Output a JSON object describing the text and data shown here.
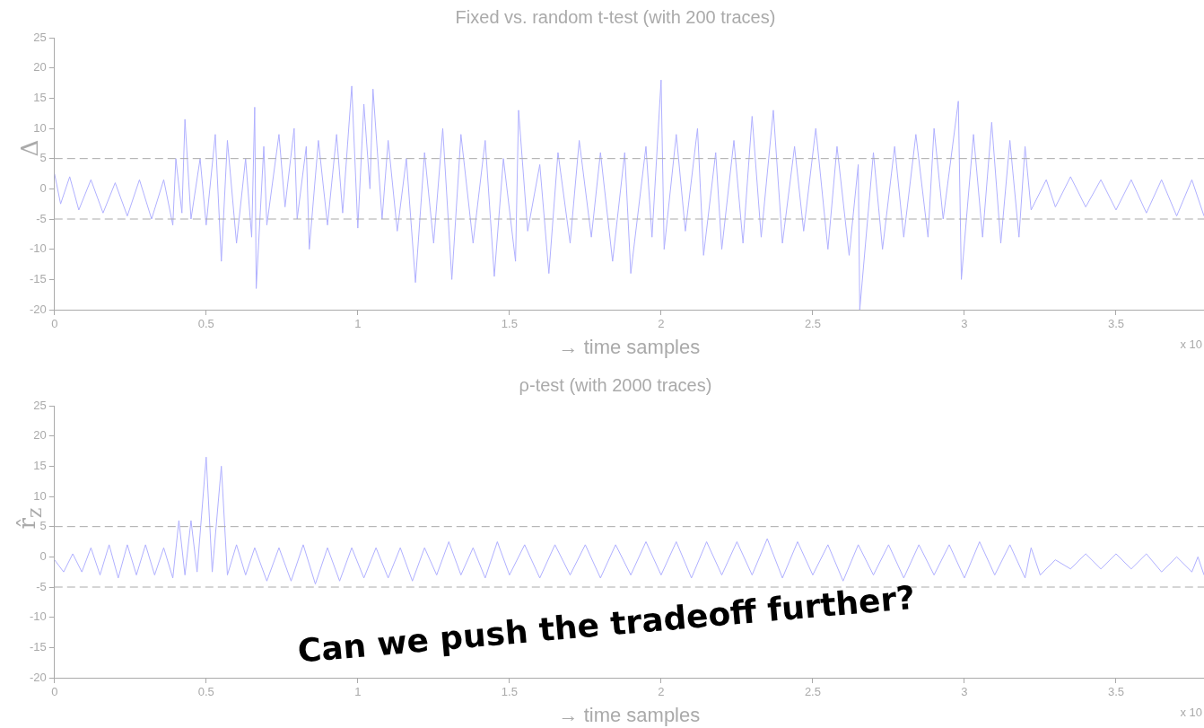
{
  "chart_data": [
    {
      "type": "line",
      "title": "Fixed vs. random t-test (with 200 traces)",
      "xlabel": "→ time samples",
      "ylabel": "Δ",
      "xlim": [
        0,
        3.79
      ],
      "xticks": [
        0,
        0.5,
        1,
        1.5,
        2,
        2.5,
        3,
        3.5
      ],
      "ylim": [
        -20,
        25
      ],
      "yticks": [
        -20,
        -15,
        -10,
        -5,
        0,
        5,
        10,
        15,
        20,
        25
      ],
      "grid": false,
      "legend": false,
      "marker": "none",
      "line_style": "solid",
      "ref_lines": [
        {
          "axis": "y",
          "value": 5,
          "color": "#aaaaaa",
          "line_style": "dashed"
        },
        {
          "axis": "y",
          "value": -5,
          "color": "#aaaaaa",
          "line_style": "dashed"
        }
      ],
      "annotations": [
        "x 10"
      ],
      "series": [
        {
          "color": "#b0b0ff",
          "x": [
            0,
            0.02,
            0.05,
            0.08,
            0.12,
            0.16,
            0.2,
            0.24,
            0.28,
            0.32,
            0.36,
            0.39,
            0.4,
            0.42,
            0.43,
            0.45,
            0.48,
            0.5,
            0.53,
            0.55,
            0.57,
            0.6,
            0.63,
            0.65,
            0.66,
            0.665,
            0.69,
            0.7,
            0.74,
            0.76,
            0.79,
            0.8,
            0.83,
            0.84,
            0.87,
            0.9,
            0.93,
            0.95,
            0.98,
            1.0,
            1.02,
            1.04,
            1.05,
            1.08,
            1.1,
            1.13,
            1.16,
            1.19,
            1.22,
            1.25,
            1.28,
            1.31,
            1.34,
            1.38,
            1.42,
            1.45,
            1.48,
            1.52,
            1.53,
            1.56,
            1.6,
            1.63,
            1.66,
            1.7,
            1.73,
            1.77,
            1.8,
            1.84,
            1.88,
            1.9,
            1.95,
            1.97,
            2.0,
            2.01,
            2.05,
            2.08,
            2.12,
            2.14,
            2.18,
            2.2,
            2.24,
            2.27,
            2.3,
            2.33,
            2.37,
            2.4,
            2.44,
            2.47,
            2.51,
            2.55,
            2.58,
            2.62,
            2.65,
            2.655,
            2.7,
            2.73,
            2.77,
            2.8,
            2.84,
            2.88,
            2.9,
            2.93,
            2.98,
            2.99,
            3.03,
            3.06,
            3.09,
            3.12,
            3.15,
            3.18,
            3.2,
            3.22,
            3.27,
            3.3,
            3.35,
            3.4,
            3.45,
            3.5,
            3.55,
            3.6,
            3.65,
            3.7,
            3.75,
            3.79
          ],
          "values": [
            2.5,
            -2.5,
            2,
            -3.5,
            1.5,
            -4,
            1,
            -4.5,
            1.5,
            -5,
            1.5,
            -6,
            5,
            -4,
            11.5,
            -5,
            5,
            -6,
            9,
            -12,
            8,
            -9,
            5,
            -8,
            13.5,
            -16.5,
            7,
            -6,
            9,
            -3,
            10,
            -5,
            7,
            -10,
            8,
            -6,
            9,
            -4,
            17,
            -6.5,
            14,
            0,
            16.5,
            -5,
            8,
            -7,
            5,
            -15.5,
            6,
            -9,
            10,
            -15,
            9,
            -9,
            8,
            -14.5,
            5,
            -12,
            13,
            -7,
            4,
            -14,
            6,
            -9,
            8,
            -8,
            6,
            -12,
            6,
            -14,
            7,
            -8,
            18,
            -10,
            9,
            -7,
            10,
            -11,
            6,
            -10,
            8,
            -9,
            12,
            -8,
            13,
            -9,
            7,
            -7,
            10,
            -10,
            7,
            -11,
            4,
            -20,
            6,
            -10,
            7,
            -8,
            9,
            -8,
            10,
            -5,
            14.5,
            -15,
            9,
            -8,
            11,
            -9,
            8,
            -8,
            7,
            -3.5,
            1.5,
            -3,
            2,
            -3,
            1.5,
            -3.5,
            1.5,
            -4,
            1.5,
            -4.5,
            1.5,
            -4.5
          ]
        }
      ]
    },
    {
      "type": "line",
      "title": "ρ-test (with 2000 traces)",
      "xlabel": "→ time samples",
      "ylabel": "r̂$_{z}$",
      "xlim": [
        0,
        3.79
      ],
      "xticks": [
        0,
        0.5,
        1,
        1.5,
        2,
        2.5,
        3,
        3.5
      ],
      "ylim": [
        -20,
        25
      ],
      "yticks": [
        -20,
        -15,
        -10,
        -5,
        0,
        5,
        10,
        15,
        20,
        25
      ],
      "grid": false,
      "legend": false,
      "marker": "none",
      "line_style": "solid",
      "ref_lines": [
        {
          "axis": "y",
          "value": 5,
          "color": "#aaaaaa",
          "line_style": "dashed"
        },
        {
          "axis": "y",
          "value": -5,
          "color": "#aaaaaa",
          "line_style": "dashed"
        }
      ],
      "annotations": [
        "x 10",
        "Can we push the tradeoff further?"
      ],
      "series": [
        {
          "color": "#b0b0ff",
          "x": [
            0,
            0.03,
            0.06,
            0.09,
            0.12,
            0.15,
            0.18,
            0.21,
            0.24,
            0.27,
            0.3,
            0.33,
            0.36,
            0.39,
            0.41,
            0.43,
            0.45,
            0.47,
            0.5,
            0.52,
            0.55,
            0.57,
            0.6,
            0.63,
            0.66,
            0.7,
            0.74,
            0.78,
            0.82,
            0.86,
            0.9,
            0.94,
            0.98,
            1.02,
            1.06,
            1.1,
            1.14,
            1.18,
            1.22,
            1.26,
            1.3,
            1.34,
            1.38,
            1.42,
            1.46,
            1.5,
            1.55,
            1.6,
            1.65,
            1.7,
            1.75,
            1.8,
            1.85,
            1.9,
            1.95,
            2.0,
            2.05,
            2.1,
            2.15,
            2.2,
            2.25,
            2.3,
            2.35,
            2.4,
            2.45,
            2.5,
            2.55,
            2.6,
            2.65,
            2.7,
            2.75,
            2.8,
            2.85,
            2.9,
            2.95,
            3.0,
            3.05,
            3.1,
            3.15,
            3.2,
            3.22,
            3.25,
            3.3,
            3.35,
            3.4,
            3.45,
            3.5,
            3.55,
            3.6,
            3.65,
            3.7,
            3.75,
            3.77,
            3.79
          ],
          "values": [
            -0.5,
            -2.5,
            0.5,
            -2.5,
            1.5,
            -3,
            2,
            -3.5,
            2,
            -3,
            2,
            -3,
            1.5,
            -3.5,
            6,
            -3,
            6,
            -2.5,
            16.5,
            -2.5,
            15,
            -3,
            2,
            -3,
            1.5,
            -4,
            1.5,
            -4,
            2,
            -4.5,
            1.5,
            -4,
            1.5,
            -3.5,
            1.5,
            -3.5,
            1.5,
            -4,
            1.5,
            -3,
            2.5,
            -3,
            1.5,
            -3.5,
            2.5,
            -3,
            2,
            -3.5,
            2,
            -3,
            2,
            -3.5,
            2,
            -3,
            2.5,
            -3,
            2.5,
            -3.5,
            2.5,
            -3,
            2.5,
            -3,
            3,
            -3.5,
            2.5,
            -3,
            2,
            -4,
            2,
            -3,
            2,
            -3.5,
            2,
            -3,
            2,
            -3.5,
            2.5,
            -3,
            2,
            -3.5,
            1.5,
            -3,
            -0.5,
            -2,
            0.5,
            -2,
            0.5,
            -2,
            0.5,
            -2.5,
            0,
            -2.5,
            0,
            -3
          ]
        }
      ]
    }
  ]
}
